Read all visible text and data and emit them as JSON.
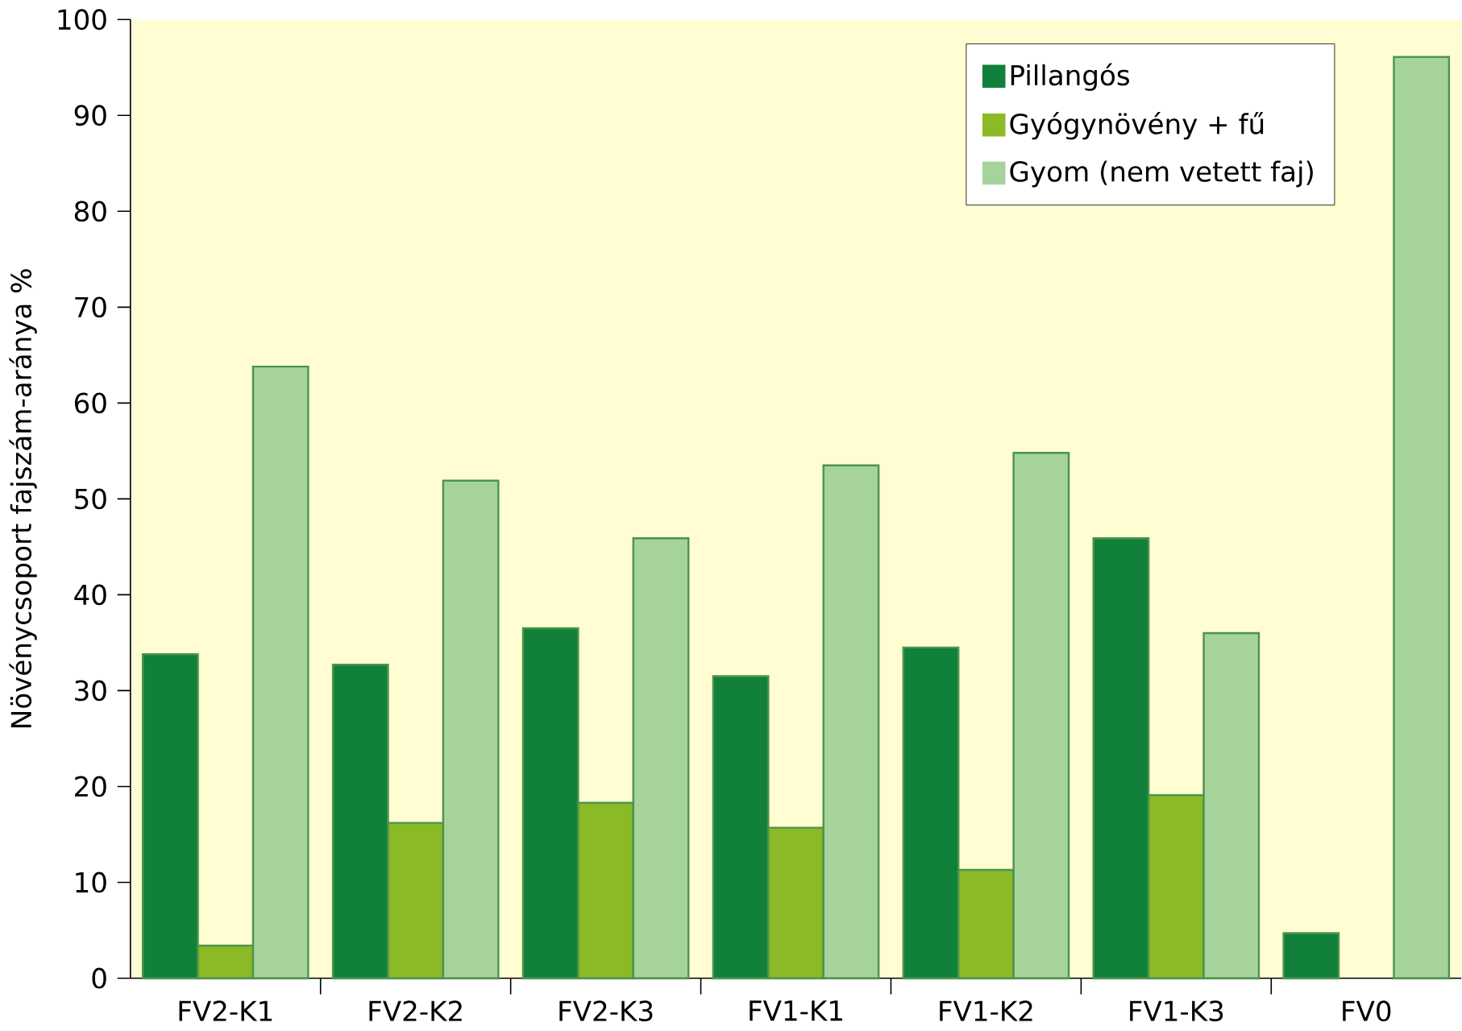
{
  "chart_data": {
    "type": "bar",
    "ylabel": "Növénycsoport  fajszám-aránya %",
    "categories": [
      "FV2-K1",
      "FV2-K2",
      "FV2-K3",
      "FV1-K1",
      "FV1-K2",
      "FV1-K3",
      "FV0"
    ],
    "series": [
      {
        "name": "Pillangós",
        "color": "#11803a",
        "values": [
          33.8,
          32.7,
          36.5,
          31.5,
          34.5,
          45.9,
          4.7
        ]
      },
      {
        "name": "Gyógynövény + fű",
        "color": "#8cba26",
        "values": [
          3.4,
          16.2,
          18.3,
          15.7,
          11.3,
          19.1,
          null
        ]
      },
      {
        "name": "Gyom (nem vetett faj)",
        "color": "#a6d39a",
        "values": [
          63.8,
          51.9,
          45.9,
          53.5,
          54.8,
          36.0,
          96.1
        ]
      }
    ],
    "ylim": [
      0,
      100
    ],
    "yticks": [
      0,
      10,
      20,
      30,
      40,
      50,
      60,
      70,
      80,
      90,
      100
    ],
    "legend": "top right"
  }
}
